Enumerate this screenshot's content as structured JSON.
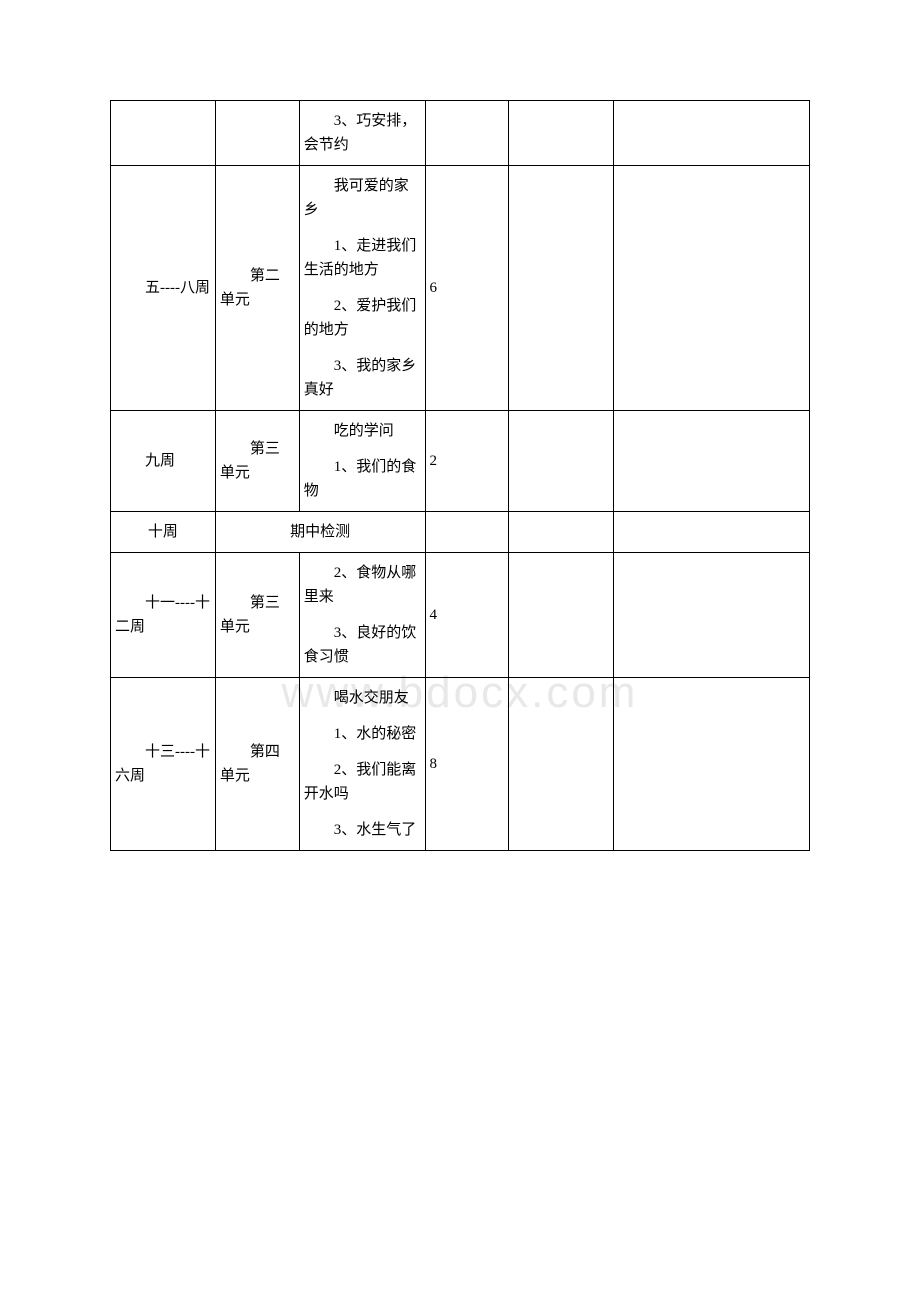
{
  "watermark": "www.bdocx.com",
  "table": {
    "rows": [
      {
        "week": "",
        "unit": "",
        "content": [
          "3、巧安排，会节约"
        ],
        "hours": "",
        "c5": "",
        "c6": ""
      },
      {
        "week": "五----八周",
        "unit": "第二单元",
        "content": [
          "我可爱的家乡",
          "1、走进我们生活的地方",
          "2、爱护我们的地方",
          "3、我的家乡真好"
        ],
        "hours": "6",
        "c5": "",
        "c6": ""
      },
      {
        "week": "九周",
        "unit": "第三单元",
        "content": [
          "吃的学问",
          "1、我们的食物"
        ],
        "hours": "2",
        "c5": "",
        "c6": ""
      },
      {
        "week": "十周",
        "unit_merged": "期中检测",
        "hours": "",
        "c5": "",
        "c6": ""
      },
      {
        "week": "十一----十二周",
        "unit": "第三单元",
        "content": [
          "2、食物从哪里来",
          "3、良好的饮食习惯"
        ],
        "hours": "4",
        "c5": "",
        "c6": ""
      },
      {
        "week": "十三----十六周",
        "unit": "第四单元",
        "content": [
          "喝水交朋友",
          "1、水的秘密",
          "2、我们能离开水吗",
          "3、水生气了"
        ],
        "hours": "8",
        "c5": "",
        "c6": ""
      }
    ]
  }
}
